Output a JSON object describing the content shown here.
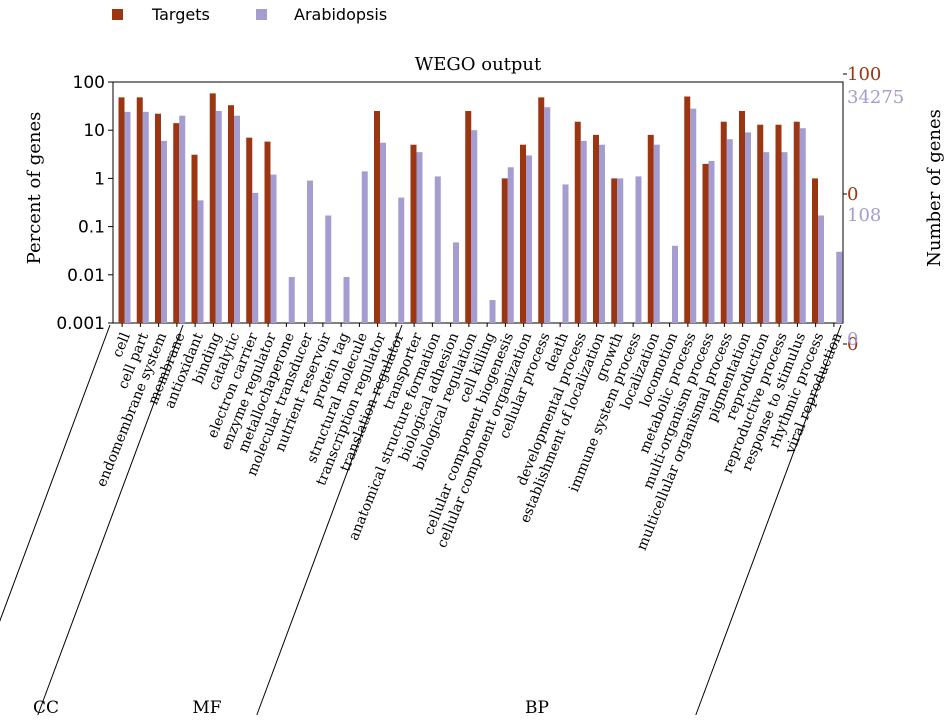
{
  "chart_data": {
    "type": "bar",
    "title": "WEGO output",
    "ylabel_left": "Percent of genes",
    "ylabel_right": "Number of genes",
    "yscale": "log",
    "ylim": [
      0.001,
      100
    ],
    "left_ticks": [
      "100",
      "10",
      "1",
      "0.1",
      "0.01",
      "0.001"
    ],
    "right_ticks": {
      "targets": [
        "100",
        "0",
        "0"
      ],
      "arabidopsis": [
        "34275",
        "108",
        "0"
      ]
    },
    "grid": false,
    "legend_placement": "top-left",
    "colors": {
      "targets": "#9b3512",
      "arabidopsis": "#a59ccf"
    },
    "series": [
      {
        "name": "Targets"
      },
      {
        "name": "Arabidopsis"
      }
    ],
    "categories": [
      "cell",
      "cell part",
      "endomembrane system",
      "membrane",
      "antioxidant",
      "binding",
      "catalytic",
      "electron carrier",
      "enzyme regulator",
      "metallochaperone",
      "molecular transducer",
      "nutrient reservoir",
      "protein tag",
      "structural molecule",
      "transcription regulator",
      "translation regulator",
      "transporter",
      "anatomical structure formation",
      "biological adhesion",
      "biological regulation",
      "cell killing",
      "cellular component biogenesis",
      "cellular component organization",
      "cellular process",
      "death",
      "developmental process",
      "establishment of localization",
      "growth",
      "immune system process",
      "localization",
      "locomotion",
      "metabolic process",
      "multi-organism process",
      "multicellular organismal process",
      "pigmentation",
      "reproduction",
      "reproductive process",
      "response to stimulus",
      "rhythmic process",
      "viral reproduction"
    ],
    "targets": [
      48,
      48,
      22,
      14,
      3.1,
      58,
      33,
      7,
      5.8,
      null,
      null,
      null,
      null,
      null,
      25,
      null,
      5,
      null,
      null,
      25,
      null,
      1,
      5,
      48,
      null,
      15,
      8,
      1,
      null,
      8,
      null,
      50,
      2,
      15,
      25,
      13,
      13,
      15,
      1,
      null
    ],
    "arabidopsis": [
      24,
      24,
      6,
      20,
      0.35,
      25,
      20,
      0.5,
      1.2,
      0.009,
      0.9,
      0.17,
      0.009,
      1.4,
      5.5,
      0.4,
      3.5,
      1.1,
      0.047,
      10,
      0.003,
      1.7,
      3,
      30,
      0.75,
      6,
      5,
      1,
      1.1,
      5,
      0.04,
      28,
      2.3,
      6.5,
      9,
      3.5,
      3.5,
      11,
      0.17,
      0.03
    ],
    "groups": [
      {
        "label": "CC",
        "start": 0,
        "end": 3
      },
      {
        "label": "MF",
        "start": 4,
        "end": 15
      },
      {
        "label": "BP",
        "start": 16,
        "end": 39
      }
    ]
  }
}
